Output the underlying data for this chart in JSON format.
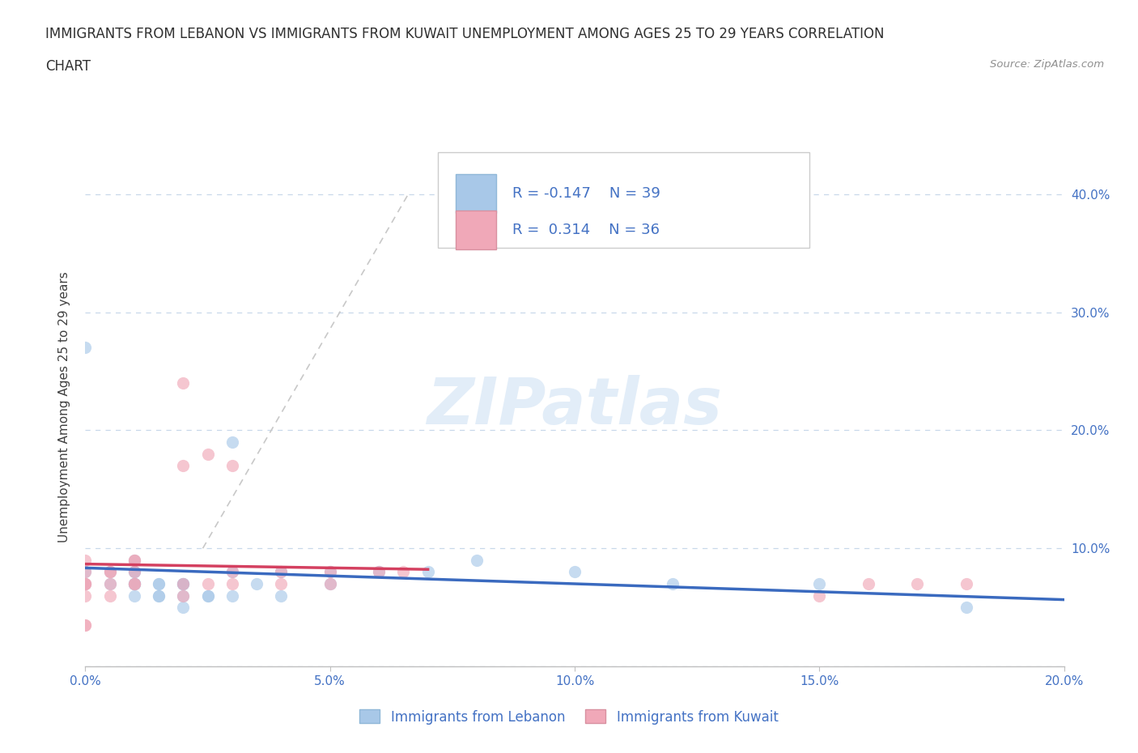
{
  "title_line1": "IMMIGRANTS FROM LEBANON VS IMMIGRANTS FROM KUWAIT UNEMPLOYMENT AMONG AGES 25 TO 29 YEARS CORRELATION",
  "title_line2": "CHART",
  "source": "Source: ZipAtlas.com",
  "ylabel": "Unemployment Among Ages 25 to 29 years",
  "watermark": "ZIPatlas",
  "legend_r1": "R = -0.147",
  "legend_n1": "N = 39",
  "legend_r2": "R =  0.314",
  "legend_n2": "N = 36",
  "legend_label1": "Immigrants from Lebanon",
  "legend_label2": "Immigrants from Kuwait",
  "color_lebanon": "#a8c8e8",
  "color_kuwait": "#f0a8b8",
  "color_trendline_lebanon": "#3a6abf",
  "color_trendline_kuwait": "#d44060",
  "color_dashed": "#c8c8c8",
  "xlim": [
    0.0,
    0.2
  ],
  "ylim": [
    0.0,
    0.44
  ],
  "xticks": [
    0.0,
    0.05,
    0.1,
    0.15,
    0.2
  ],
  "yticks": [
    0.0,
    0.1,
    0.2,
    0.3,
    0.4
  ],
  "ytick_labels_right": [
    "",
    "10.0%",
    "20.0%",
    "30.0%",
    "40.0%"
  ],
  "xtick_labels": [
    "0.0%",
    "5.0%",
    "10.0%",
    "15.0%",
    "20.0%"
  ],
  "lebanon_x": [
    0.0,
    0.0,
    0.0,
    0.005,
    0.005,
    0.01,
    0.01,
    0.01,
    0.01,
    0.01,
    0.01,
    0.01,
    0.01,
    0.015,
    0.015,
    0.015,
    0.015,
    0.02,
    0.02,
    0.02,
    0.02,
    0.02,
    0.025,
    0.025,
    0.03,
    0.03,
    0.03,
    0.035,
    0.04,
    0.04,
    0.05,
    0.05,
    0.06,
    0.07,
    0.08,
    0.1,
    0.12,
    0.15,
    0.18
  ],
  "lebanon_y": [
    0.07,
    0.08,
    0.27,
    0.07,
    0.08,
    0.06,
    0.07,
    0.07,
    0.07,
    0.07,
    0.08,
    0.08,
    0.09,
    0.06,
    0.06,
    0.07,
    0.07,
    0.05,
    0.06,
    0.07,
    0.07,
    0.07,
    0.06,
    0.06,
    0.06,
    0.19,
    0.08,
    0.07,
    0.06,
    0.08,
    0.07,
    0.08,
    0.08,
    0.08,
    0.09,
    0.08,
    0.07,
    0.07,
    0.05
  ],
  "kuwait_x": [
    0.0,
    0.0,
    0.0,
    0.0,
    0.0,
    0.0,
    0.0,
    0.0,
    0.005,
    0.005,
    0.005,
    0.005,
    0.01,
    0.01,
    0.01,
    0.01,
    0.01,
    0.02,
    0.02,
    0.02,
    0.02,
    0.025,
    0.025,
    0.03,
    0.03,
    0.03,
    0.04,
    0.04,
    0.05,
    0.05,
    0.06,
    0.065,
    0.15,
    0.16,
    0.17,
    0.18
  ],
  "kuwait_y": [
    0.035,
    0.035,
    0.06,
    0.07,
    0.07,
    0.07,
    0.08,
    0.09,
    0.06,
    0.07,
    0.08,
    0.08,
    0.07,
    0.07,
    0.08,
    0.09,
    0.09,
    0.06,
    0.07,
    0.17,
    0.24,
    0.07,
    0.18,
    0.07,
    0.08,
    0.17,
    0.07,
    0.08,
    0.07,
    0.08,
    0.08,
    0.08,
    0.06,
    0.07,
    0.07,
    0.07
  ],
  "bg_color": "#ffffff",
  "grid_color": "#c8d8ea",
  "title_color": "#303030",
  "axis_label_color": "#404040",
  "tick_color": "#4472c4",
  "source_color": "#909090",
  "marker_size": 120,
  "marker_alpha": 0.65
}
